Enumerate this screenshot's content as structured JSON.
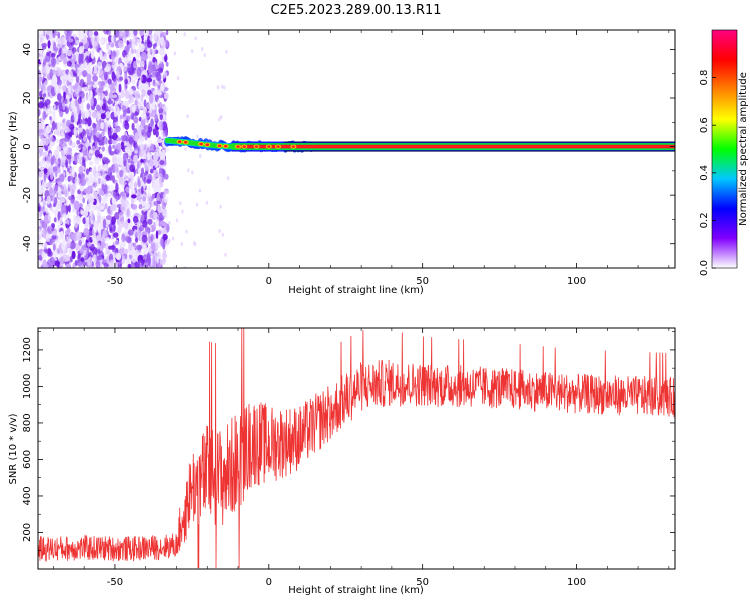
{
  "figure": {
    "title": "C2E5.2023.289.00.13.R11"
  },
  "chart_data": [
    {
      "type": "heatmap",
      "xlabel": "Height of straight line (km)",
      "ylabel": "Frequency (Hz)",
      "xlim": [
        -75,
        132
      ],
      "ylim": [
        -50,
        48
      ],
      "xticks": [
        -50,
        0,
        50,
        100
      ],
      "yticks": [
        -40,
        -20,
        0,
        20,
        40
      ],
      "grid": false,
      "colorbar": {
        "label": "Normalized spectral amplitude",
        "range": [
          0,
          1
        ],
        "ticks": [
          "0.0",
          "0.2",
          "0.4",
          "0.6",
          "0.8"
        ],
        "colormap": [
          "#ffffff",
          "#8000ff",
          "#0000ff",
          "#00c8ff",
          "#00ff00",
          "#ffff00",
          "#ff8000",
          "#ff0000",
          "#ff0080"
        ]
      },
      "features": {
        "noise_region": {
          "x_from": -75,
          "x_to": -33,
          "freq_from": -50,
          "freq_to": 48,
          "amplitude": "0.0-0.2"
        },
        "signal_track": {
          "points": [
            {
              "x": -33,
              "freq": 2.5
            },
            {
              "x": -25,
              "freq": 1.5
            },
            {
              "x": -18,
              "freq": 0.5
            },
            {
              "x": -12,
              "freq": 0
            },
            {
              "x": 0,
              "freq": 0
            },
            {
              "x": 132,
              "freq": 0
            }
          ],
          "amplitude": "~0.9"
        }
      }
    },
    {
      "type": "line",
      "xlabel": "Height of straight line (km)",
      "ylabel": "SNR (10 * v/v)",
      "xlim": [
        -75,
        132
      ],
      "ylim": [
        0,
        1320
      ],
      "xticks": [
        -50,
        0,
        50,
        100
      ],
      "yticks": [
        200,
        400,
        600,
        800,
        1000,
        1200
      ],
      "grid": false,
      "series": [
        {
          "color": "#ee3333",
          "profile": {
            "x": [
              -75,
              -60,
              -45,
              -35,
              -30,
              -28,
              -25,
              -20,
              -15,
              -10,
              -5,
              0,
              10,
              20,
              30,
              40,
              50,
              75,
              100,
              132
            ],
            "y": [
              110,
              115,
              110,
              120,
              130,
              280,
              450,
              520,
              500,
              600,
              700,
              680,
              720,
              860,
              1000,
              1020,
              1010,
              990,
              960,
              940
            ]
          },
          "noise_spread": {
            "x": [
              -75,
              -30,
              -28,
              -20,
              -10,
              0,
              10,
              20,
              30,
              50,
              100,
              132
            ],
            "y": [
              70,
              70,
              180,
              280,
              280,
              220,
              180,
              160,
              140,
              120,
              110,
              110
            ]
          }
        }
      ]
    }
  ]
}
